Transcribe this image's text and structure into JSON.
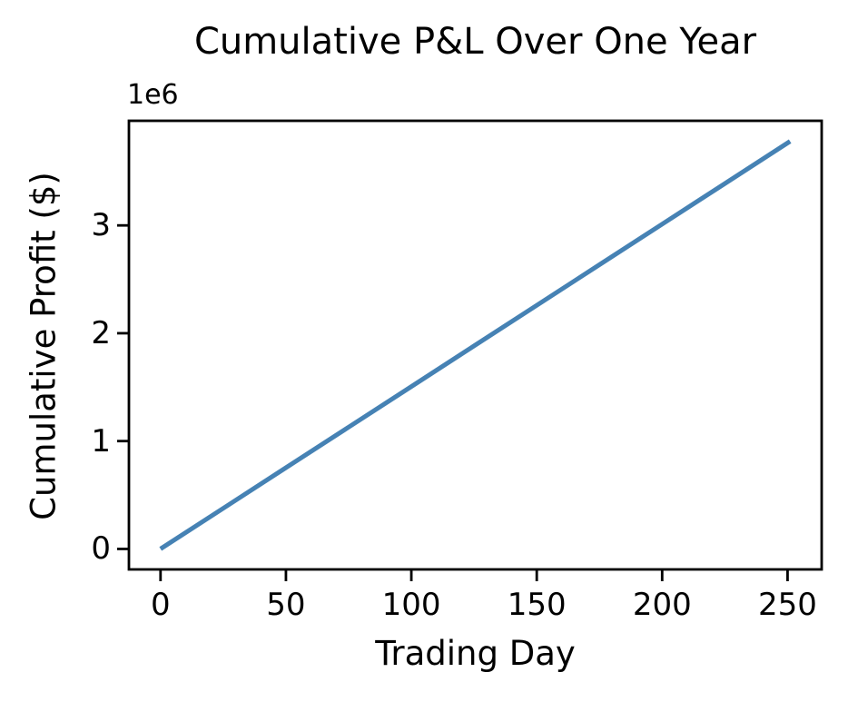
{
  "figure": {
    "background_color": "#ffffff",
    "text_color": "#000000"
  },
  "chart_data": {
    "type": "line",
    "title": "Cumulative P&L Over One Year",
    "xlabel": "Trading Day",
    "ylabel": "Cumulative Profit ($)",
    "offset_text": "1e6",
    "x": [
      0,
      25,
      50,
      75,
      100,
      125,
      150,
      175,
      200,
      225,
      251
    ],
    "y": [
      0,
      376500,
      753000,
      1129500,
      1506000,
      1882500,
      2259000,
      2635500,
      3012000,
      3388500,
      3780000
    ],
    "series_name": "Cumulative P&L",
    "xticks": [
      0,
      50,
      100,
      150,
      200,
      250
    ],
    "xticklabels": [
      "0",
      "50",
      "100",
      "150",
      "200",
      "250"
    ],
    "yticks": [
      0,
      1000000,
      2000000,
      3000000
    ],
    "yticklabels": [
      "0",
      "1",
      "2",
      "3"
    ],
    "xlim": [
      -12.6,
      263.6
    ],
    "ylim": [
      -190000,
      3970000
    ],
    "grid": false,
    "legend": null,
    "line_color": "#4682b4",
    "line_width": 5,
    "axis_color": "#000000",
    "spine_width": 2.8,
    "tick_length": 13
  }
}
